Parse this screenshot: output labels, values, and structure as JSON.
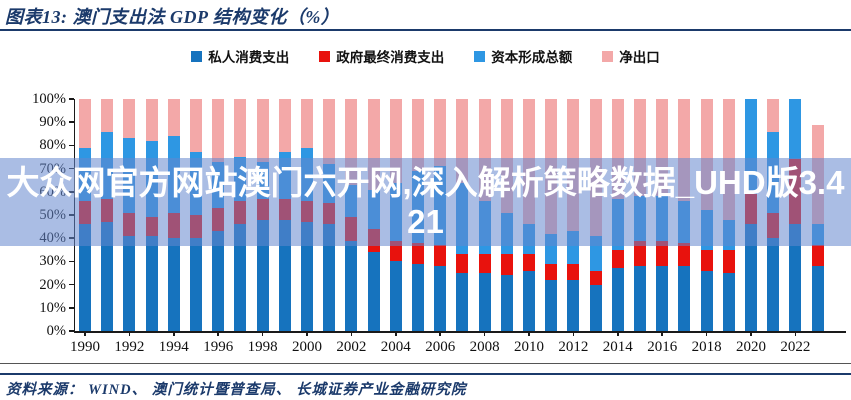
{
  "header": {
    "title": "图表13:  澳门支出法 GDP 结构变化（%）"
  },
  "watermark": {
    "text": "大众网官方网站澳门六开网,深入解析策略数据_UHD版3.421"
  },
  "footer": {
    "source": "资料来源：  WIND、 澳门统计暨普查局、 长城证券产业金融研究院"
  },
  "colors": {
    "private_consumption": "#1673be",
    "government_consumption": "#e8120d",
    "capital_formation": "#2e97e3",
    "net_exports": "#f3a8a8",
    "accent_navy": "#1b3a6b",
    "watermark_band": "rgba(100,135,206,0.55)"
  },
  "chart_data": {
    "type": "bar",
    "stacked": true,
    "percent_stacked": true,
    "title": "澳门支出法 GDP 结构变化（%）",
    "unit": "%",
    "ylim": [
      0,
      100
    ],
    "grid": false,
    "legend_position": "top",
    "years": [
      1990,
      1991,
      1992,
      1993,
      1994,
      1995,
      1996,
      1997,
      1998,
      1999,
      2000,
      2001,
      2002,
      2003,
      2004,
      2005,
      2006,
      2007,
      2008,
      2009,
      2010,
      2011,
      2012,
      2013,
      2014,
      2015,
      2016,
      2017,
      2018,
      2019,
      2020,
      2021,
      2022,
      2023
    ],
    "series": [
      {
        "name": "私人消费支出",
        "color": "#1673be",
        "values": [
          46,
          47,
          41,
          41,
          40,
          40,
          43,
          46,
          48,
          48,
          47,
          46,
          39,
          34,
          30,
          29,
          28,
          25,
          25,
          24,
          26,
          22,
          22,
          20,
          27,
          28,
          28,
          28,
          26,
          25,
          46,
          40,
          46,
          28
        ]
      },
      {
        "name": "政府最终消费支出",
        "color": "#e8120d",
        "values": [
          10,
          10,
          10,
          8,
          11,
          10,
          10,
          10,
          9,
          9,
          9,
          9,
          10,
          10,
          9,
          9,
          9,
          8,
          8,
          9,
          7,
          7,
          7,
          6,
          8,
          11,
          11,
          10,
          9,
          10,
          13,
          11,
          28,
          9
        ]
      },
      {
        "name": "资本形成总额",
        "color": "#2e97e3",
        "values": [
          23,
          29,
          32,
          33,
          33,
          27,
          20,
          19,
          16,
          20,
          23,
          17,
          14,
          17,
          25,
          31,
          34,
          31,
          23,
          18,
          13,
          13,
          14,
          15,
          22,
          19,
          19,
          18,
          17,
          13,
          41,
          35,
          26,
          9
        ]
      },
      {
        "name": "净出口",
        "color": "#f3a8a8",
        "values": [
          21,
          14,
          17,
          18,
          16,
          23,
          27,
          25,
          27,
          23,
          21,
          28,
          37,
          39,
          36,
          31,
          29,
          36,
          44,
          49,
          54,
          58,
          57,
          59,
          43,
          42,
          42,
          44,
          48,
          52,
          0,
          14,
          0,
          43
        ]
      }
    ],
    "yticks": [
      "0%",
      "10%",
      "20%",
      "30%",
      "40%",
      "50%",
      "60%",
      "70%",
      "80%",
      "90%",
      "100%"
    ],
    "xticks": [
      "1990",
      "1992",
      "1994",
      "1996",
      "1998",
      "2000",
      "2002",
      "2004",
      "2006",
      "2008",
      "2010",
      "2012",
      "2014",
      "2016",
      "2018",
      "2020",
      "2022"
    ]
  }
}
